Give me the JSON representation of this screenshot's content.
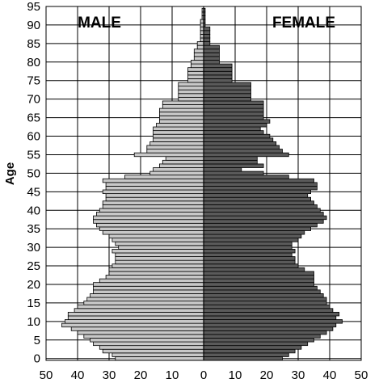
{
  "chart_data": {
    "type": "bar",
    "orientation": "horizontal-population-pyramid",
    "title": "",
    "xlabel": "",
    "ylabel": "Age",
    "male_label": "MALE",
    "female_label": "FEMALE",
    "xlim_each_side": [
      0,
      50
    ],
    "x_ticks": [
      "50",
      "40",
      "30",
      "20",
      "10",
      "0",
      "10",
      "20",
      "30",
      "40",
      "50"
    ],
    "ylim": [
      0,
      95
    ],
    "y_ticks": [
      "0",
      "5",
      "10",
      "15",
      "20",
      "25",
      "30",
      "35",
      "40",
      "45",
      "50",
      "55",
      "60",
      "65",
      "70",
      "75",
      "80",
      "85",
      "90",
      "95"
    ],
    "grid": true,
    "colors": {
      "male": "#c8c8c8",
      "female": "#5a5a5a",
      "stroke": "#000000",
      "grid": "#000000"
    },
    "ages": [
      0,
      1,
      2,
      3,
      4,
      5,
      6,
      7,
      8,
      9,
      10,
      11,
      12,
      13,
      14,
      15,
      16,
      17,
      18,
      19,
      20,
      21,
      22,
      23,
      24,
      25,
      26,
      27,
      28,
      29,
      30,
      31,
      32,
      33,
      34,
      35,
      36,
      37,
      38,
      39,
      40,
      41,
      42,
      43,
      44,
      45,
      46,
      47,
      48,
      49,
      50,
      51,
      52,
      53,
      54,
      55,
      56,
      57,
      58,
      59,
      60,
      61,
      62,
      63,
      64,
      65,
      66,
      67,
      68,
      69,
      70,
      71,
      72,
      73,
      74,
      75,
      76,
      77,
      78,
      79,
      80,
      81,
      82,
      83,
      84,
      85,
      86,
      87,
      88,
      89,
      90,
      91,
      92,
      93,
      94,
      95
    ],
    "series": [
      {
        "name": "MALE",
        "values": [
          28,
          29,
          32,
          33,
          35,
          36,
          38,
          40,
          42,
          45,
          44,
          43,
          43,
          41,
          40,
          38,
          37,
          36,
          35,
          35,
          35,
          33,
          31,
          30,
          30,
          29,
          28,
          28,
          28,
          29,
          27,
          28,
          29,
          30,
          32,
          33,
          34,
          35,
          35,
          34,
          33,
          32,
          32,
          31,
          31,
          32,
          31,
          31,
          32,
          25,
          17,
          16,
          14,
          13,
          12,
          22,
          18,
          18,
          17,
          16,
          16,
          16,
          16,
          15,
          14,
          14,
          14,
          14,
          13,
          13,
          8,
          8,
          8,
          8,
          8,
          5,
          5,
          5,
          5,
          4,
          4,
          3,
          3,
          3,
          2,
          2,
          1,
          1,
          1,
          1,
          1,
          1,
          0.5,
          0.5,
          0.5,
          0
        ]
      },
      {
        "name": "FEMALE",
        "values": [
          25,
          27,
          29,
          31,
          33,
          35,
          37,
          39,
          41,
          42,
          44,
          42,
          43,
          41,
          40,
          39,
          39,
          38,
          37,
          36,
          35,
          35,
          35,
          35,
          32,
          30,
          29,
          29,
          28,
          29,
          28,
          28,
          30,
          31,
          32,
          34,
          36,
          38,
          39,
          38,
          37,
          36,
          35,
          34,
          33,
          34,
          36,
          36,
          35,
          27,
          19,
          12,
          19,
          17,
          17,
          27,
          25,
          24,
          23,
          22,
          21,
          19,
          18,
          20,
          21,
          19,
          19,
          19,
          19,
          19,
          15,
          15,
          15,
          15,
          15,
          9,
          9,
          9,
          9,
          9,
          5,
          5,
          5,
          5,
          5,
          2,
          2,
          2,
          2,
          2,
          0.5,
          0.5,
          0.5,
          0.5,
          0.5,
          0
        ]
      }
    ]
  }
}
